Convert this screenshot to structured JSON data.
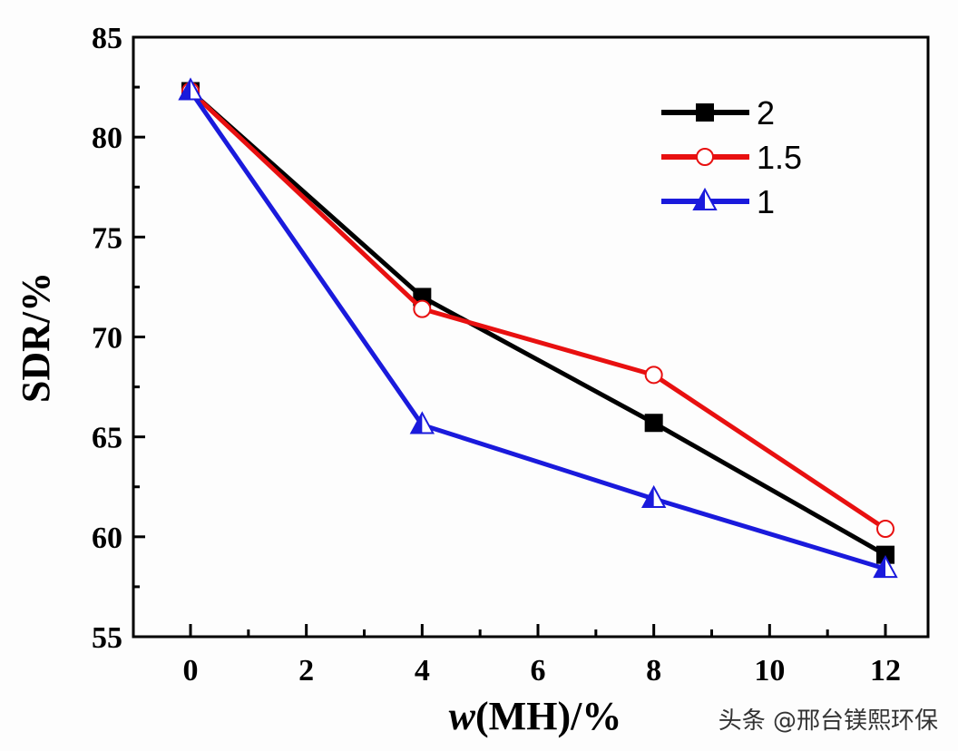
{
  "chart_data": {
    "type": "line",
    "title": "",
    "xlabel_italic": "w",
    "xlabel_rest": "(MH)/%",
    "ylabel": "SDR/%",
    "xlim": [
      -1,
      12.5
    ],
    "ylim": [
      55,
      85
    ],
    "x_ticks": [
      0,
      2,
      4,
      6,
      8,
      10,
      12
    ],
    "x_tick_labels": [
      "0",
      "2",
      "4",
      "6",
      "8",
      "10",
      "12"
    ],
    "x_minor_ticks": [
      1,
      3,
      5,
      7,
      9,
      11
    ],
    "y_ticks": [
      55,
      60,
      65,
      70,
      75,
      80,
      85
    ],
    "y_tick_labels": [
      "55",
      "60",
      "65",
      "70",
      "75",
      "80",
      "85"
    ],
    "y_minor_ticks": [
      57.5,
      62.5,
      67.5,
      72.5,
      77.5,
      82.5
    ],
    "grid": false,
    "legend_position": "top-right",
    "x": [
      0,
      4,
      8,
      12
    ],
    "series": [
      {
        "name": "2",
        "values": [
          82.3,
          72.0,
          65.7,
          59.1
        ],
        "color": "#000000",
        "marker": "square"
      },
      {
        "name": "1.5",
        "values": [
          82.3,
          71.4,
          68.1,
          60.4
        ],
        "color": "#e81010",
        "marker": "circle"
      },
      {
        "name": "1",
        "values": [
          82.3,
          65.6,
          61.9,
          58.4
        ],
        "color": "#1a1adc",
        "marker": "triangle"
      }
    ]
  },
  "watermark": "头条 @邢台镁熙环保"
}
